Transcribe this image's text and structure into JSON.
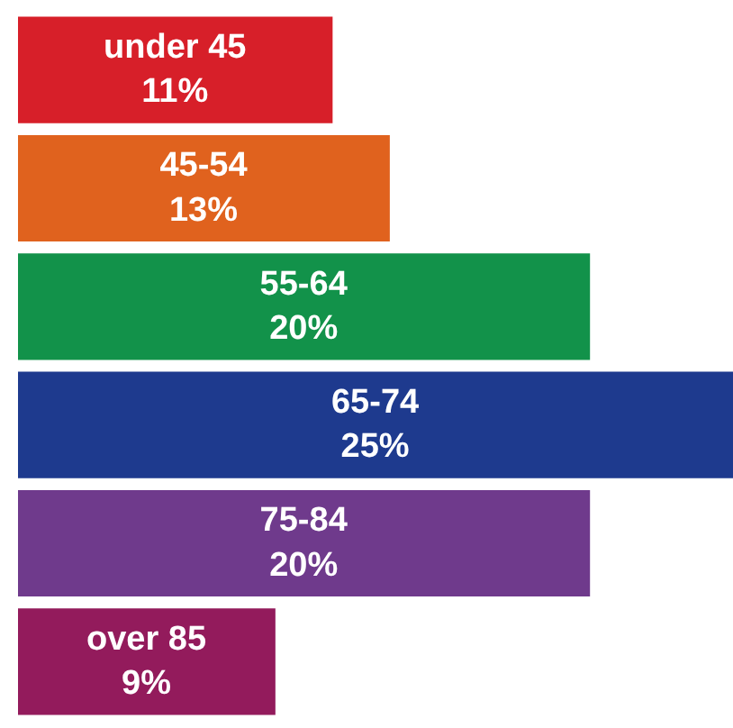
{
  "chart_data": {
    "type": "bar",
    "orientation": "horizontal",
    "tick_labels": false,
    "categories": [
      "under 45",
      "45-54",
      "55-64",
      "65-74",
      "75-84",
      "over 85"
    ],
    "values": [
      11,
      13,
      20,
      25,
      20,
      9
    ],
    "value_labels": [
      "11%",
      "13%",
      "20%",
      "25%",
      "20%",
      "9%"
    ],
    "colors": [
      "#d71f29",
      "#e0621e",
      "#12924a",
      "#1e3a8e",
      "#6f3a8c",
      "#931b5c"
    ]
  }
}
